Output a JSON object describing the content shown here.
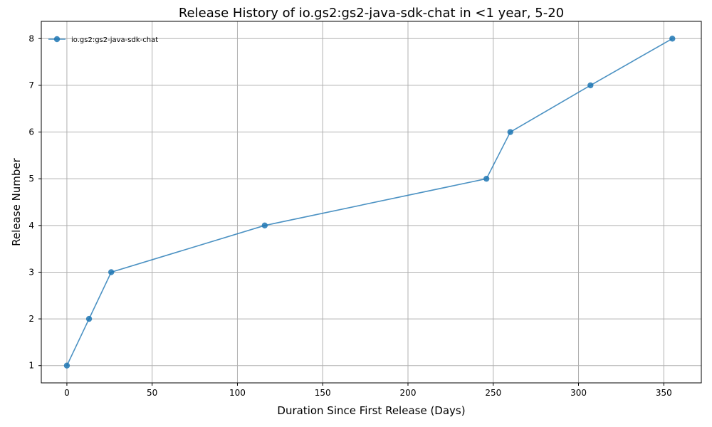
{
  "chart_data": {
    "type": "line",
    "title": "Release History of io.gs2:gs2-java-sdk-chat in <1 year, 5-20",
    "xlabel": "Duration Since First Release (Days)",
    "ylabel": "Release Number",
    "xlim": [
      -15,
      372
    ],
    "ylim": [
      0.63,
      8.37
    ],
    "x_ticks": [
      0,
      50,
      100,
      150,
      200,
      250,
      300,
      350
    ],
    "y_ticks": [
      1,
      2,
      3,
      4,
      5,
      6,
      7,
      8
    ],
    "grid": true,
    "legend_position": "top-left",
    "series": [
      {
        "name": "io.gs2:gs2-java-sdk-chat",
        "color": "#1f77b4",
        "marker": "circle",
        "x": [
          0,
          13,
          26,
          116,
          246,
          260,
          307,
          355
        ],
        "y": [
          1,
          2,
          3,
          4,
          5,
          6,
          7,
          8
        ]
      }
    ]
  }
}
